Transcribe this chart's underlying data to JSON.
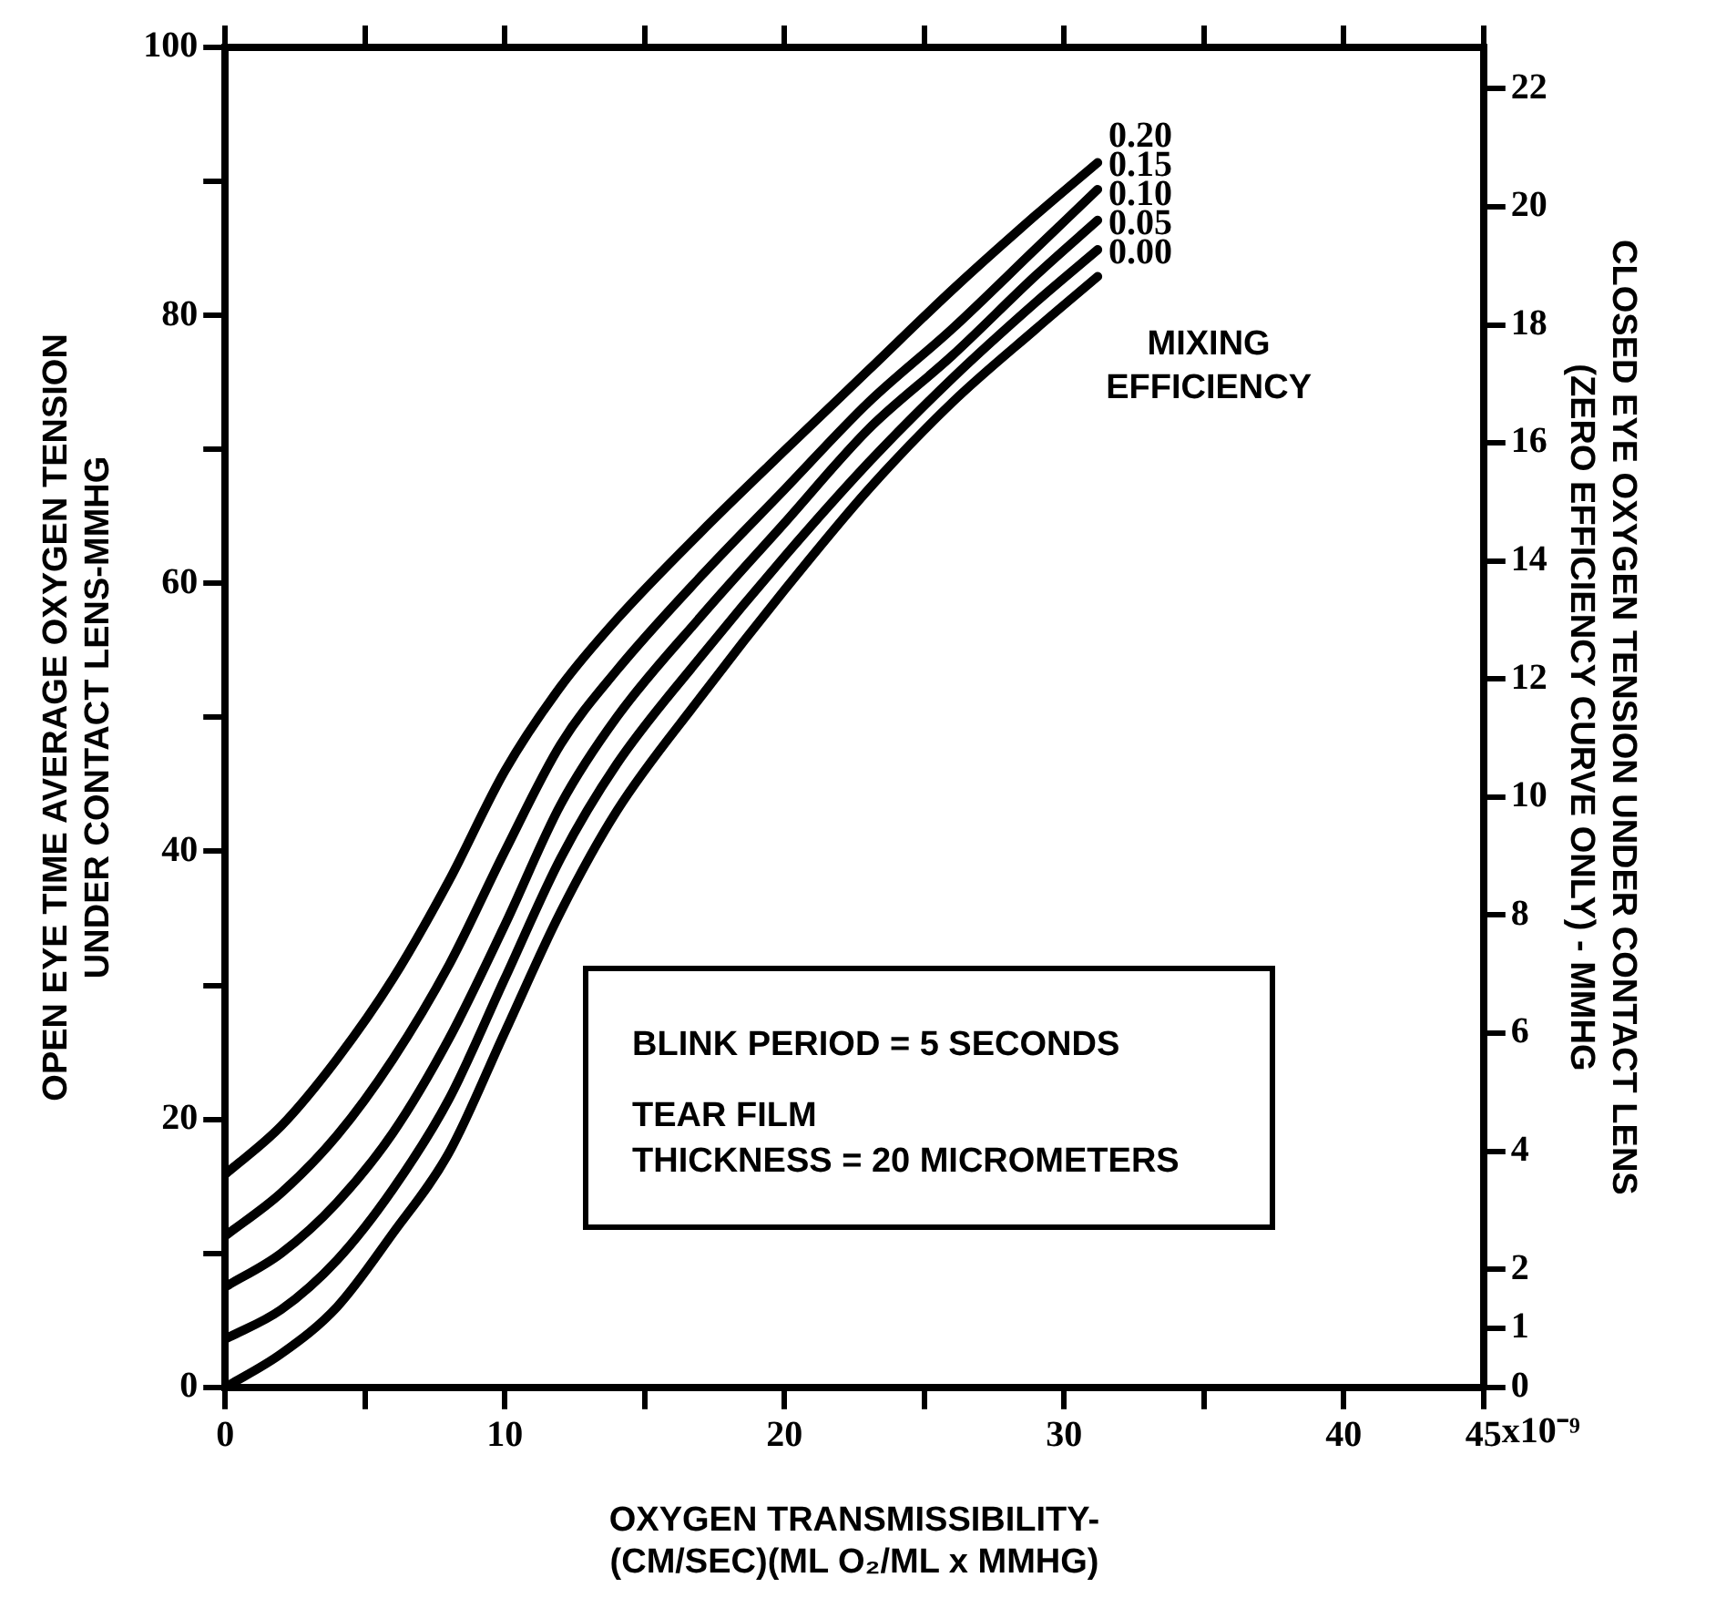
{
  "chart_data": {
    "type": "line",
    "xlabel": "OXYGEN TRANSMISSIBILITY-\n(CM/SEC)(ML O₂/ML x MMHG)",
    "ylabel": "OPEN EYE TIME AVERAGE OXYGEN TENSION\nUNDER CONTACT LENS-MMHG",
    "y2label": "CLOSED EYE OXYGEN TENSION UNDER CONTACT LENS\n(ZERO EFFICIENCY CURVE ONLY) - MMHG",
    "legend_title": "MIXING\nEFFICIENCY",
    "annotations": [
      "BLINK PERIOD = 5 SECONDS",
      "TEAR FILM\nTHICKNESS = 20 MICROMETERS",
      "x10⁻⁹"
    ],
    "x": [
      0,
      2,
      4,
      6,
      8,
      10,
      12,
      14,
      17,
      20,
      23,
      26,
      29,
      31.2
    ],
    "series": [
      {
        "name": "0.20",
        "color": "#000000",
        "values": [
          15.9,
          19.5,
          24.5,
          30.5,
          37.8,
          46,
          52.3,
          57.3,
          63.8,
          69.9,
          75.9,
          81.9,
          87.5,
          91.4
        ]
      },
      {
        "name": "0.15",
        "color": "#000000",
        "values": [
          11.3,
          14.5,
          18.8,
          24.5,
          31.5,
          40,
          48,
          53.5,
          60.5,
          67,
          73.5,
          79,
          85,
          89.4
        ]
      },
      {
        "name": "0.10",
        "color": "#000000",
        "values": [
          7.5,
          10,
          13.8,
          19,
          26,
          34.5,
          43.5,
          50,
          57.5,
          64.5,
          71.5,
          77,
          83,
          87.1
        ]
      },
      {
        "name": "0.05",
        "color": "#000000",
        "values": [
          3.6,
          5.8,
          9.5,
          14.8,
          21.5,
          30.5,
          39.5,
          46.5,
          54.5,
          62,
          69,
          75.3,
          81,
          84.9
        ]
      },
      {
        "name": "0.00",
        "color": "#000000",
        "values": [
          0,
          2.5,
          6,
          11.5,
          17.5,
          26.5,
          35.5,
          43,
          51.5,
          59.5,
          67,
          73.5,
          79,
          82.9
        ]
      }
    ],
    "xlim": [
      0,
      45
    ],
    "xticks": [
      0,
      {
        "value": 5,
        "label": null
      },
      10,
      {
        "value": 15,
        "label": null
      },
      20,
      {
        "value": 25,
        "label": null
      },
      30,
      {
        "value": 35,
        "label": null
      },
      40,
      45
    ],
    "ylim": [
      0,
      100
    ],
    "yticks": [
      0,
      {
        "value": 10,
        "label": null
      },
      20,
      {
        "value": 30,
        "label": null
      },
      40,
      {
        "value": 50,
        "label": null
      },
      60,
      {
        "value": 70,
        "label": null
      },
      80,
      {
        "value": 90,
        "label": null
      },
      100
    ],
    "y2lim": [
      0,
      22.7
    ],
    "y2ticks": [
      0,
      1,
      2,
      4,
      6,
      8,
      10,
      12,
      14,
      16,
      18,
      20,
      22
    ],
    "grid": false,
    "legend": false,
    "marker": "none",
    "line_style": "solid"
  }
}
